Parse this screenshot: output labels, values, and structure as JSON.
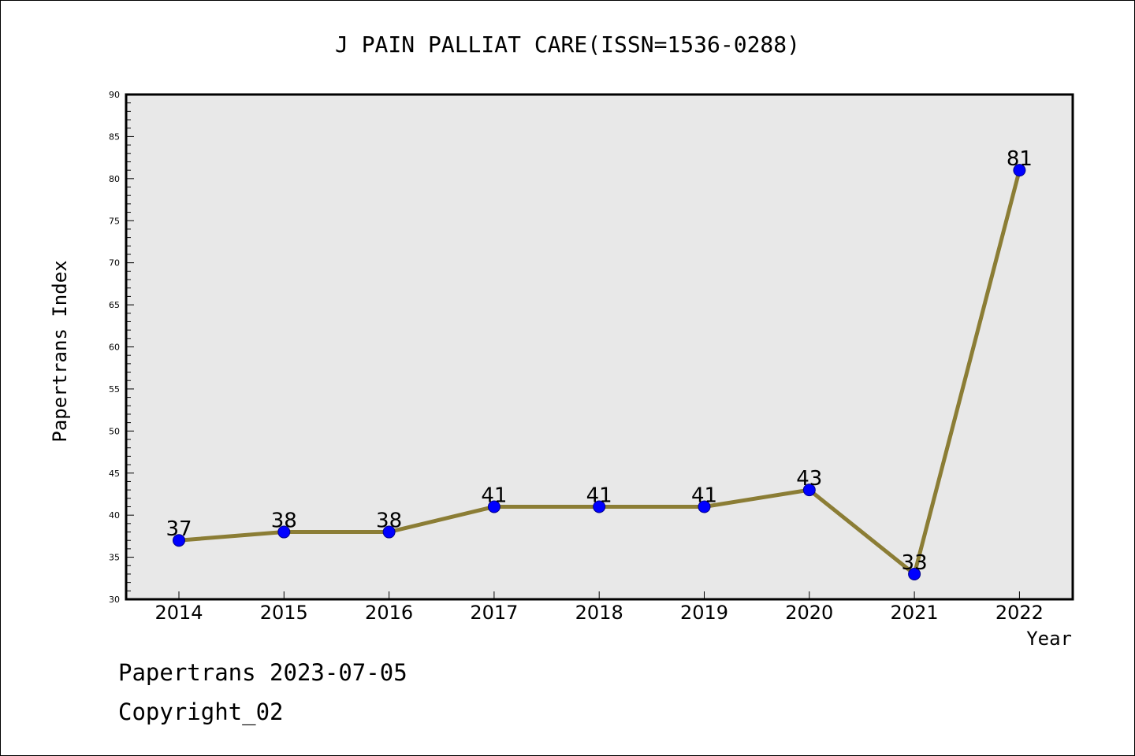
{
  "chart_data": {
    "type": "line",
    "title": "J PAIN PALLIAT CARE(ISSN=1536-0288)",
    "xlabel": "Year",
    "ylabel": "Papertrans Index",
    "categories": [
      "2014",
      "2015",
      "2016",
      "2017",
      "2018",
      "2019",
      "2020",
      "2021",
      "2022"
    ],
    "series": [
      {
        "values": [
          37,
          38,
          38,
          41,
          41,
          41,
          43,
          33,
          81
        ]
      }
    ],
    "ylim": [
      30,
      90
    ],
    "ytick_step": 5,
    "grid": false,
    "line_color": "#8b7d35",
    "marker_color": "#0000ff",
    "plot_background": "#e8e8e8"
  },
  "footer": {
    "date_line": "Papertrans 2023-07-05",
    "copyright_line": "Copyright_02"
  }
}
